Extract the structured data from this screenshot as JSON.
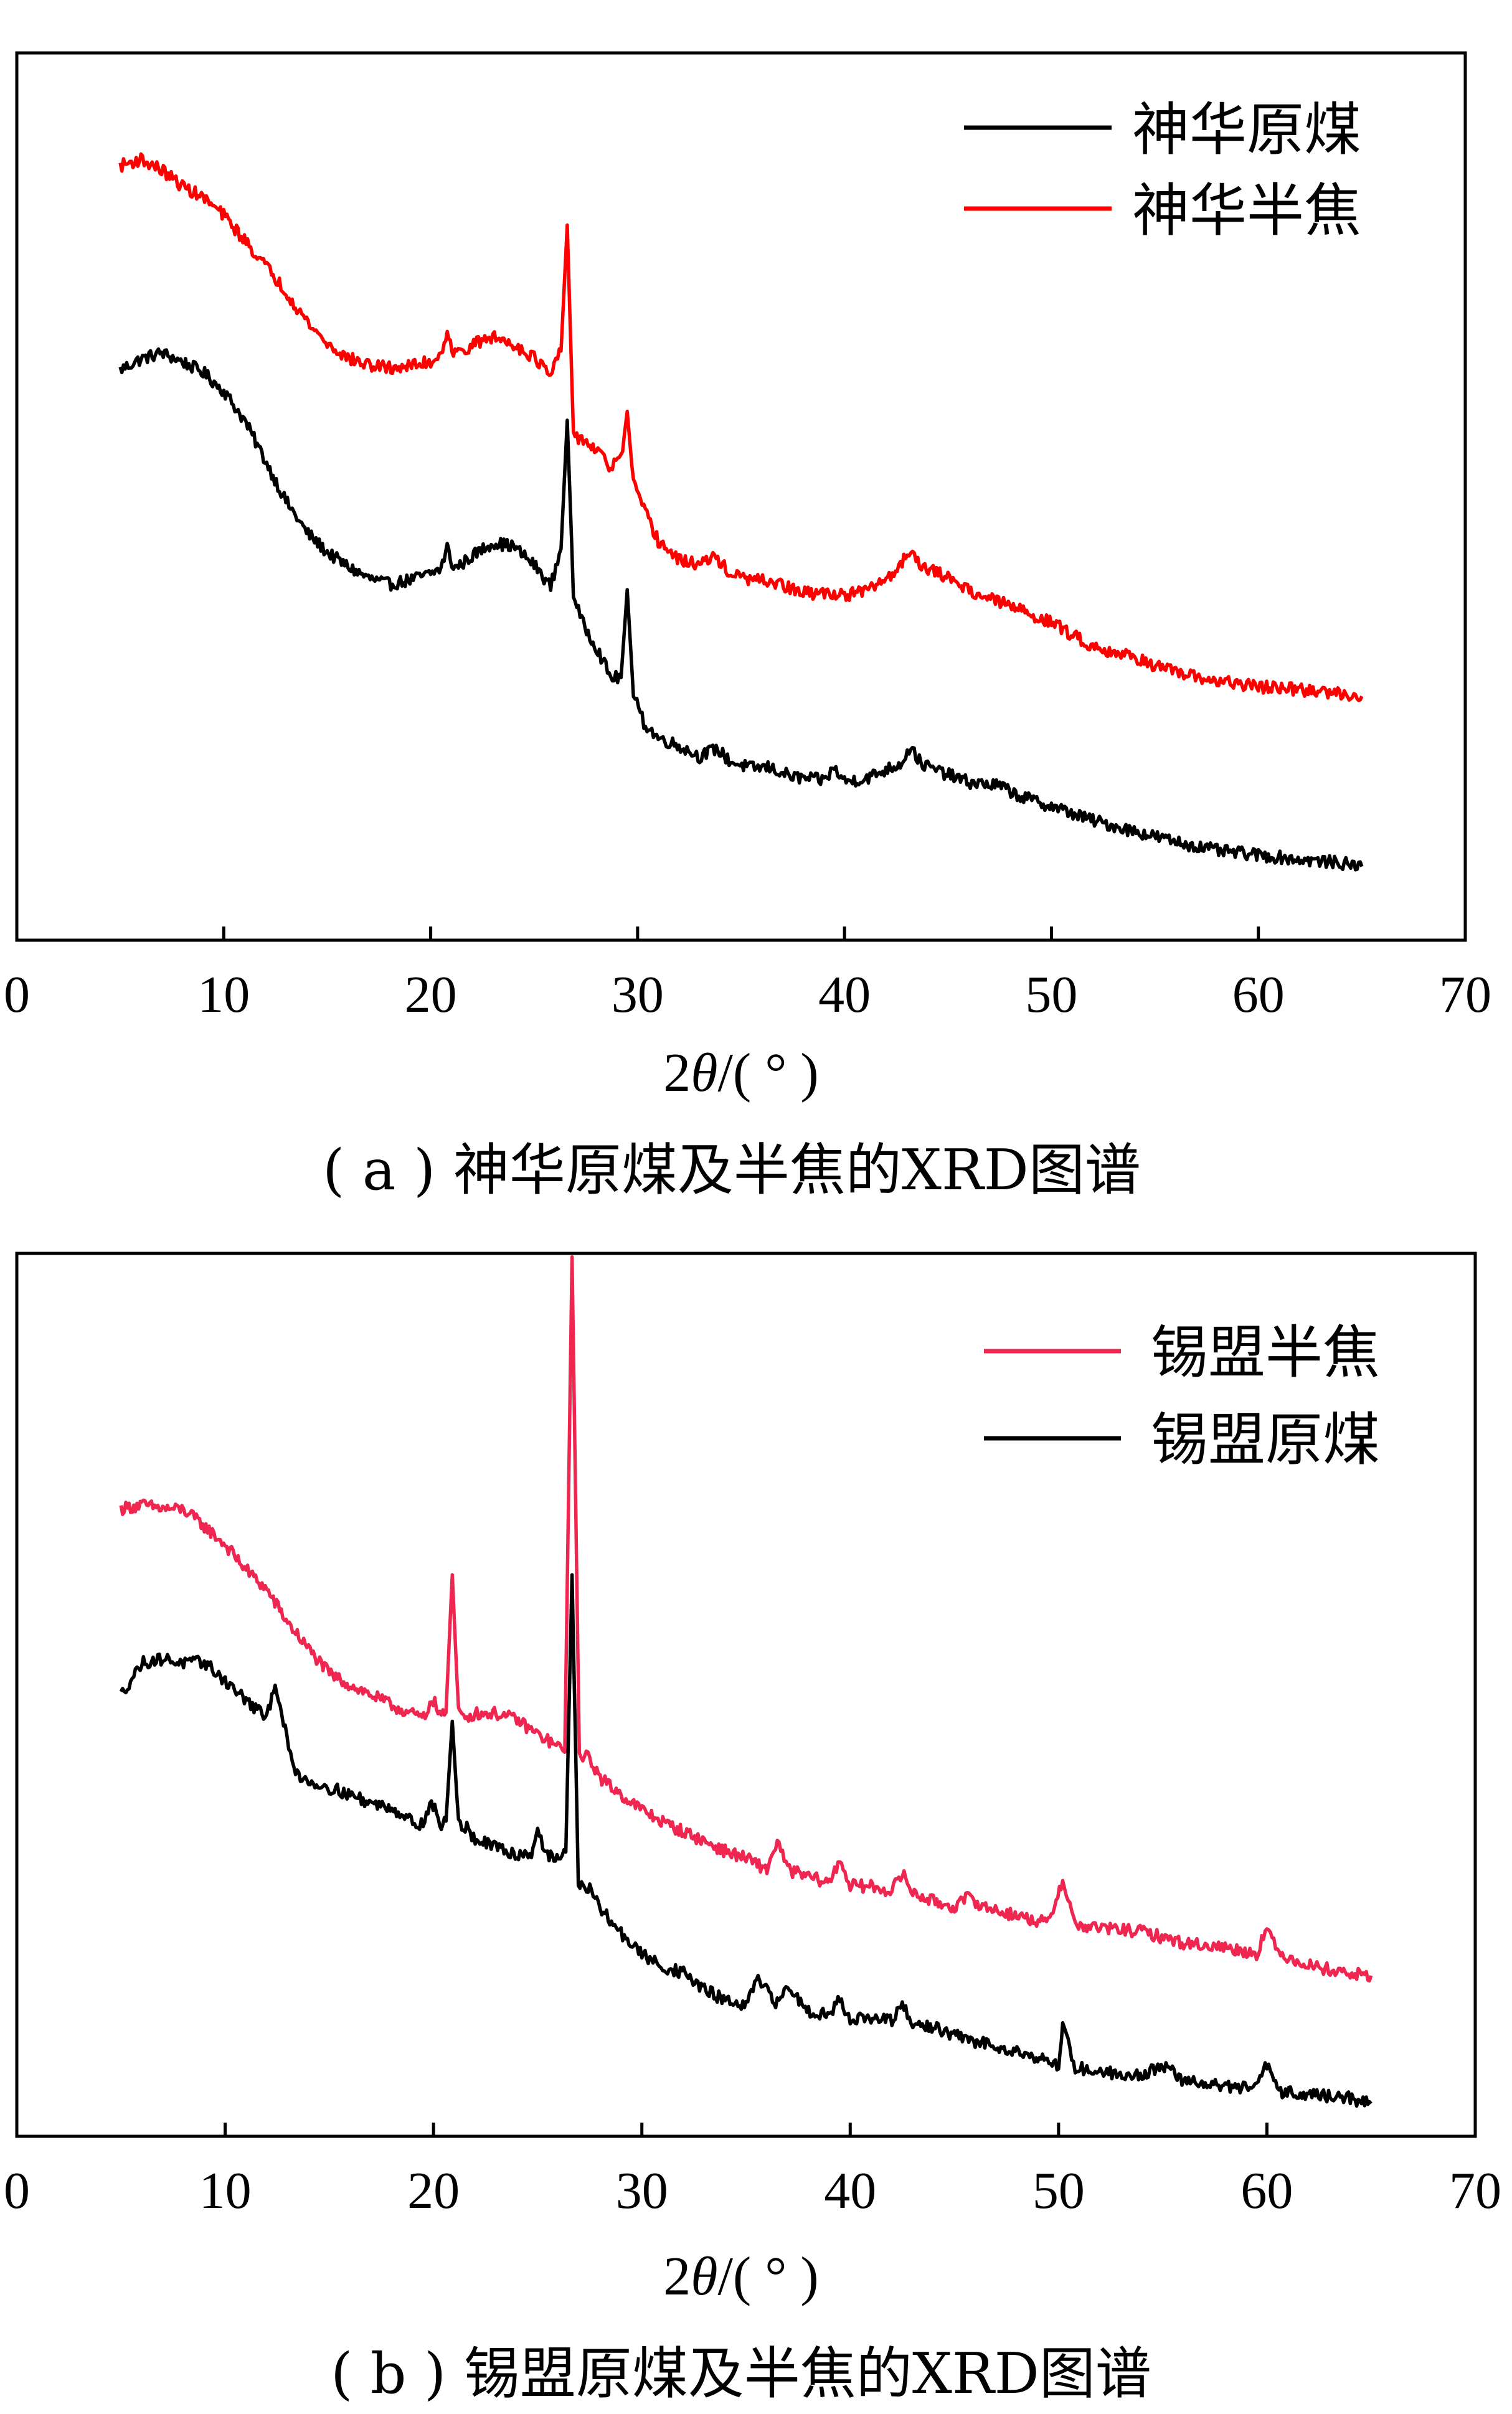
{
  "chart_data": [
    {
      "type": "line",
      "caption": "( a ) 神华原煤及半焦的XRD图谱",
      "xlabel_pre": "2",
      "xlabel_theta": "θ",
      "xlabel_post": "/( ° )",
      "ylabel": "",
      "xlim": [
        0,
        70
      ],
      "x_ticks": [
        "0",
        "10",
        "20",
        "30",
        "40",
        "50",
        "60",
        "70"
      ],
      "legend_position": "top-right",
      "grid": false,
      "series": [
        {
          "name": "神华原煤",
          "color": "#000000",
          "x": [
            5,
            6,
            7,
            8,
            9,
            10,
            11,
            12,
            13,
            14,
            15,
            16,
            17,
            18,
            19,
            20,
            20.5,
            20.8,
            21.1,
            21.5,
            22,
            23,
            24,
            25,
            25.8,
            26.3,
            26.6,
            26.9,
            27.3,
            28,
            28.7,
            29.2,
            29.5,
            29.8,
            30.3,
            31,
            32,
            33,
            33.8,
            34.5,
            35.5,
            36.3,
            37.5,
            39,
            39.5,
            40,
            41,
            42,
            42.7,
            43.2,
            43.7,
            44.5,
            46,
            47.5,
            48.5,
            50,
            52,
            54,
            56,
            58,
            60,
            62,
            64,
            65
          ],
          "y": [
            64.3,
            65.5,
            66.2,
            65.2,
            64.0,
            61.9,
            58.6,
            54.1,
            49.5,
            46.0,
            43.7,
            42.1,
            40.8,
            40.1,
            40.6,
            41.3,
            41.9,
            44.3,
            41.9,
            42.4,
            43.3,
            44.8,
            44.4,
            42.3,
            39.9,
            44.1,
            58.6,
            39.1,
            35.9,
            33.1,
            29.6,
            29.6,
            39.5,
            27.6,
            24.5,
            22.8,
            21.9,
            20.7,
            21.6,
            20.1,
            19.4,
            19.5,
            18.4,
            18.0,
            19.4,
            17.9,
            18.2,
            19.2,
            19.9,
            21.8,
            19.9,
            19.1,
            17.8,
            17.4,
            16.2,
            15.1,
            13.5,
            12.3,
            11.1,
            10.1,
            9.6,
            9.1,
            8.7,
            8.3
          ]
        },
        {
          "name": "神华半焦",
          "color": "#ff0000",
          "x": [
            5,
            6,
            7,
            8,
            9,
            10,
            11,
            12,
            13,
            14,
            15,
            16,
            17,
            18,
            19,
            20,
            20.5,
            20.8,
            21.1,
            21.5,
            22,
            23,
            24,
            25,
            25.8,
            26.3,
            26.6,
            26.9,
            27.3,
            28,
            28.7,
            29.2,
            29.5,
            29.8,
            30.3,
            31,
            32,
            33,
            33.8,
            34.5,
            35.5,
            36.5,
            38,
            39.5,
            40,
            41,
            42,
            42.7,
            43.2,
            43.8,
            45,
            46.5,
            48,
            50,
            52,
            54,
            56,
            58,
            60,
            62,
            64,
            65
          ],
          "y": [
            87.3,
            88.0,
            86.8,
            85.0,
            83.7,
            81.7,
            78.9,
            76.1,
            73.1,
            69.8,
            67.2,
            65.6,
            64.8,
            64.5,
            64.7,
            65.2,
            66.0,
            68.9,
            66.0,
            66.4,
            67.1,
            68.0,
            67.2,
            65.7,
            63.6,
            66.4,
            80.6,
            56.8,
            56.6,
            55.2,
            53.3,
            54.3,
            59.6,
            51.4,
            48.5,
            45.0,
            42.8,
            42.4,
            43.2,
            41.2,
            40.6,
            40.4,
            39.1,
            39.1,
            38.9,
            39.3,
            40.7,
            42.2,
            44.2,
            42.0,
            40.9,
            38.9,
            37.7,
            35.8,
            33.1,
            31.9,
            30.1,
            29.2,
            28.6,
            28.2,
            27.8,
            27.5
          ]
        }
      ]
    },
    {
      "type": "line",
      "caption": "( b ) 锡盟原煤及半焦的XRD图谱",
      "xlabel_pre": "2",
      "xlabel_theta": "θ",
      "xlabel_post": "/( ° )",
      "ylabel": "",
      "xlim": [
        0,
        70
      ],
      "x_ticks": [
        "0",
        "10",
        "20",
        "30",
        "40",
        "50",
        "60",
        "70"
      ],
      "legend_position": "top-right",
      "grid": false,
      "series": [
        {
          "name": "锡盟半焦",
          "color": "#ee2650",
          "x": [
            5,
            6,
            7,
            8,
            9,
            10,
            11,
            12,
            13,
            14,
            15,
            16,
            17,
            18,
            19,
            19.6,
            19.9,
            20.3,
            20.6,
            20.9,
            21.2,
            21.6,
            22,
            23,
            24,
            25,
            25.8,
            26.3,
            26.65,
            27,
            27.5,
            28,
            29,
            30,
            31,
            32,
            33,
            34,
            35,
            36,
            36.5,
            37,
            38,
            39,
            39.5,
            40,
            41,
            42,
            42.5,
            43,
            44,
            45,
            45.7,
            46.5,
            48,
            49.5,
            50.2,
            50.8,
            52,
            54,
            56,
            58,
            59.5,
            60,
            60.5,
            62,
            64,
            65
          ],
          "y": [
            71.1,
            71.5,
            71.1,
            71.0,
            69.1,
            67.0,
            64.2,
            61.9,
            58.2,
            55.2,
            52.4,
            51.1,
            50.0,
            48.8,
            47.8,
            47.3,
            49.8,
            47.8,
            48.0,
            63.6,
            47.9,
            47.5,
            47.9,
            47.9,
            47.2,
            45.5,
            44.4,
            43.5,
            99.6,
            43.3,
            42.8,
            40.6,
            38.7,
            37.0,
            35.6,
            34.5,
            33.4,
            32.3,
            31.5,
            30.2,
            33.5,
            30.2,
            29.4,
            28.7,
            31.4,
            28.4,
            28.3,
            27.8,
            29.8,
            27.6,
            26.6,
            26.0,
            27.1,
            25.9,
            25.0,
            24.1,
            29.1,
            23.9,
            23.6,
            23.2,
            21.9,
            21.4,
            20.7,
            23.7,
            20.8,
            19.4,
            18.4,
            18.2
          ]
        },
        {
          "name": "锡盟原煤",
          "color": "#000000",
          "x": [
            5,
            6,
            7,
            8,
            9,
            10,
            11,
            12,
            12.4,
            12.8,
            13.3,
            14,
            15,
            16,
            17,
            18,
            19,
            19.5,
            19.9,
            20.3,
            20.6,
            20.9,
            21.2,
            21.6,
            22,
            23,
            24,
            24.7,
            25,
            25.4,
            26,
            26.35,
            26.65,
            26.95,
            27.5,
            28,
            29,
            30,
            31,
            32,
            33,
            34,
            35,
            35.5,
            36.5,
            37,
            38,
            39,
            39.5,
            40,
            41,
            42,
            42.5,
            43,
            44,
            45,
            46,
            47,
            48,
            49,
            50,
            50.2,
            50.8,
            52,
            54,
            55,
            56,
            58,
            59.5,
            60,
            60.5,
            62,
            64,
            65
          ],
          "y": [
            50.0,
            53.6,
            54.1,
            53.6,
            53.7,
            51.6,
            49.4,
            47.3,
            51.6,
            46.8,
            41.4,
            40.2,
            39.5,
            38.7,
            37.7,
            37.3,
            35.6,
            35.4,
            38.0,
            35.3,
            35.7,
            47.0,
            35.4,
            34.9,
            33.6,
            32.7,
            31.9,
            32.1,
            34.8,
            32.0,
            31.2,
            32.2,
            63.6,
            28.8,
            27.9,
            25.8,
            23.0,
            20.6,
            19.2,
            18.5,
            16.6,
            15.4,
            14.6,
            17.8,
            15.0,
            17.0,
            14.2,
            13.8,
            15.5,
            13.4,
            13.3,
            13.1,
            14.8,
            12.6,
            12.4,
            11.4,
            10.7,
            10.3,
            9.6,
            9.0,
            7.9,
            12.7,
            7.8,
            7.3,
            6.9,
            8.1,
            6.3,
            5.7,
            5.4,
            8.3,
            5.1,
            4.8,
            4.3,
            3.7
          ]
        }
      ]
    }
  ]
}
